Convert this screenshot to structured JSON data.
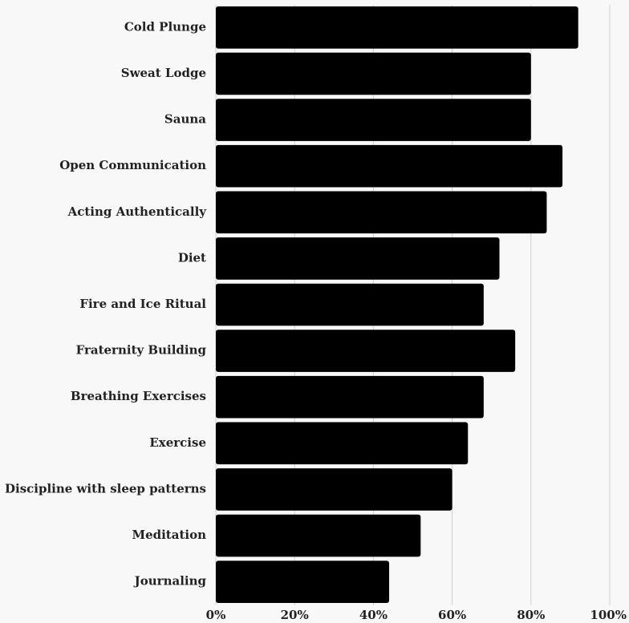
{
  "chart_data": {
    "type": "bar",
    "orientation": "horizontal",
    "title": "",
    "xlabel": "",
    "ylabel": "",
    "categories": [
      "Cold Plunge",
      "Sweat Lodge",
      "Sauna",
      "Open Communication",
      "Acting Authentically",
      "Diet",
      "Fire and Ice Ritual",
      "Fraternity Building",
      "Breathing Exercises",
      "Exercise",
      "Discipline with sleep patterns",
      "Meditation",
      "Journaling"
    ],
    "values": [
      92,
      80,
      80,
      88,
      84,
      72,
      68,
      76,
      68,
      64,
      60,
      52,
      44
    ],
    "value_unit": "%",
    "xlim": [
      0,
      100
    ],
    "x_ticks": [
      0,
      20,
      40,
      60,
      80,
      100
    ],
    "x_tick_labels": [
      "0%",
      "20%",
      "40%",
      "60%",
      "80%",
      "100%"
    ],
    "grid": "vertical",
    "legend": "none",
    "colors": {
      "bar": "#000000",
      "grid": "#cfcfcf",
      "background": "#f8f8f8",
      "text": "#222222"
    }
  }
}
